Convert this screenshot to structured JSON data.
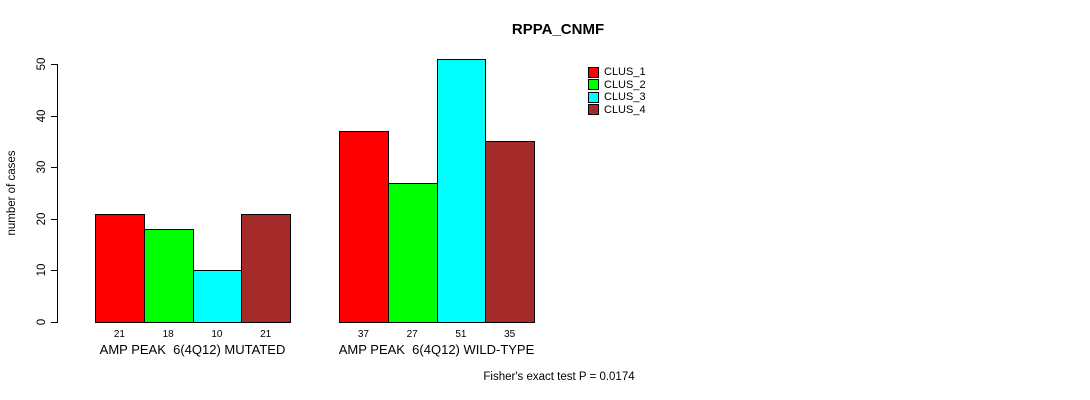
{
  "chart_data": {
    "type": "bar",
    "title": "RPPA_CNMF",
    "ylabel": "number of cases",
    "xlabel": "",
    "ylim": [
      0,
      50
    ],
    "yticks": [
      0,
      10,
      20,
      30,
      40,
      50
    ],
    "grid": false,
    "legend_position": "top-right",
    "categories": [
      "AMP PEAK  6(4Q12) MUTATED",
      "AMP PEAK  6(4Q12) WILD-TYPE"
    ],
    "series": [
      {
        "name": "CLUS_1",
        "color": "#FF0000",
        "values": [
          21,
          37
        ]
      },
      {
        "name": "CLUS_2",
        "color": "#00FF00",
        "values": [
          18,
          27
        ]
      },
      {
        "name": "CLUS_3",
        "color": "#00FFFF",
        "values": [
          10,
          51
        ]
      },
      {
        "name": "CLUS_4",
        "color": "#A52A2A",
        "values": [
          21,
          35
        ]
      }
    ],
    "bar_value_labels": [
      [
        21,
        18,
        10,
        21
      ],
      [
        37,
        27,
        51,
        35
      ]
    ],
    "annotation": "Fisher's exact test P = 0.0174"
  }
}
